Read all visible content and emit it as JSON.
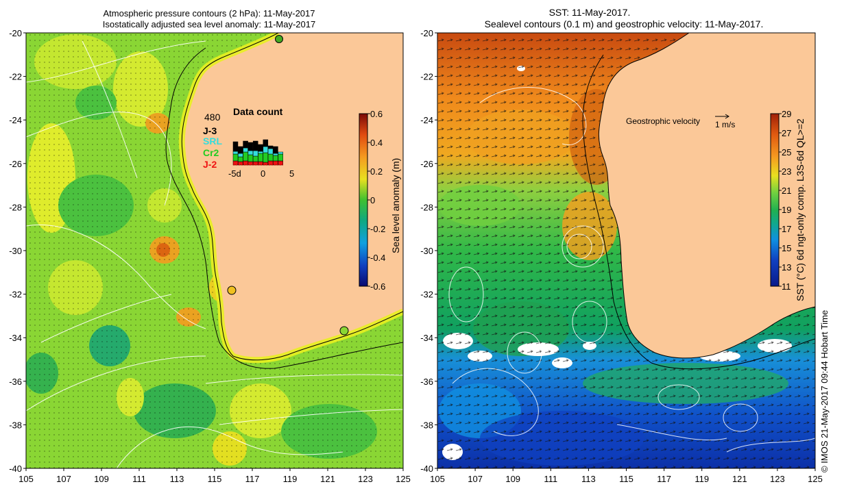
{
  "left_panel": {
    "title_line1": "Atmospheric pressure contours (2 hPa): 11-May-2017",
    "title_line2": "Isostatically adjusted sea level anomaly: 11-May-2017",
    "colorbar": {
      "label": "Sea level anomaly (m)",
      "ticks": [
        "0.6",
        "0.4",
        "0.2",
        "0",
        "-0.2",
        "-0.4",
        "-0.6"
      ]
    },
    "data_count": {
      "title": "Data count",
      "max_label": "480",
      "legend": [
        {
          "label": "J-3",
          "color": "#000000"
        },
        {
          "label": "SRL",
          "color": "#33dddd"
        },
        {
          "label": "Cr2",
          "color": "#22cc22"
        },
        {
          "label": "J-2",
          "color": "#ee1111"
        }
      ],
      "x_ticks": [
        "-5d",
        "0",
        "5"
      ]
    }
  },
  "right_panel": {
    "title_line1": "SST: 11-May-2017.",
    "title_line2": "Sealevel contours (0.1 m) and geostrophic velocity: 11-May-2017.",
    "velocity_label": "Geostrophic velocity",
    "velocity_scale": "1 m/s",
    "colorbar": {
      "label": "SST (°C) 6d ngt-only comp. L3S-6d QL>=2",
      "ticks": [
        "29",
        "27",
        "25",
        "23",
        "21",
        "19",
        "17",
        "15",
        "13",
        "11"
      ]
    }
  },
  "axes": {
    "lat_ticks": [
      "-20",
      "-22",
      "-24",
      "-26",
      "-28",
      "-30",
      "-32",
      "-34",
      "-36",
      "-38",
      "-40"
    ],
    "lon_ticks": [
      "105",
      "107",
      "109",
      "111",
      "113",
      "115",
      "117",
      "119",
      "121",
      "123",
      "125"
    ]
  },
  "credit": "© IMOS 21-May-2017 09:44 Hobart Time",
  "colors": {
    "land": "#fbc898",
    "coast_yellow": "#e8f020"
  }
}
